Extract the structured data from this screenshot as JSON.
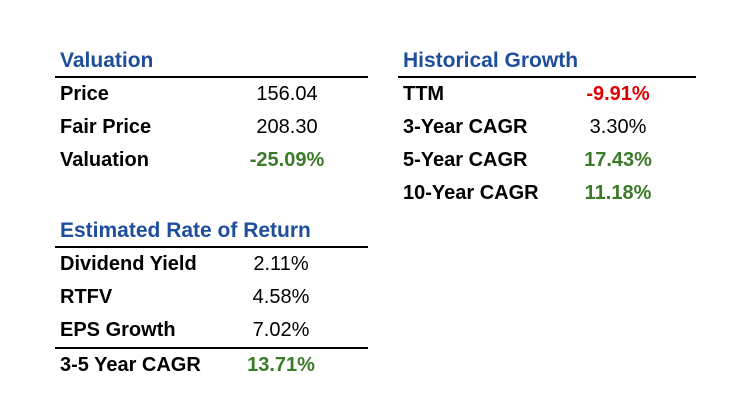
{
  "valuation": {
    "title": "Valuation",
    "rows": [
      {
        "label": "Price",
        "value": "156.04"
      },
      {
        "label": "Fair Price",
        "value": "208.30"
      },
      {
        "label": "Valuation",
        "value": "-25.09%"
      }
    ]
  },
  "historical_growth": {
    "title": "Historical Growth",
    "rows": [
      {
        "label": "TTM",
        "value": "-9.91%"
      },
      {
        "label": "3-Year CAGR",
        "value": "3.30%"
      },
      {
        "label": "5-Year CAGR",
        "value": "17.43%"
      },
      {
        "label": "10-Year CAGR",
        "value": "11.18%"
      }
    ]
  },
  "estimated_return": {
    "title": "Estimated Rate of Return",
    "rows": [
      {
        "label": "Dividend Yield",
        "value": "2.11%"
      },
      {
        "label": "RTFV",
        "value": "4.58%"
      },
      {
        "label": "EPS Growth",
        "value": "7.02%"
      }
    ],
    "total": {
      "label": "3-5 Year CAGR",
      "value": "13.71%"
    }
  },
  "colors": {
    "heading": "#1f4e9c",
    "positive": "#3a7a28",
    "negative": "#e00000",
    "text": "#000000"
  }
}
